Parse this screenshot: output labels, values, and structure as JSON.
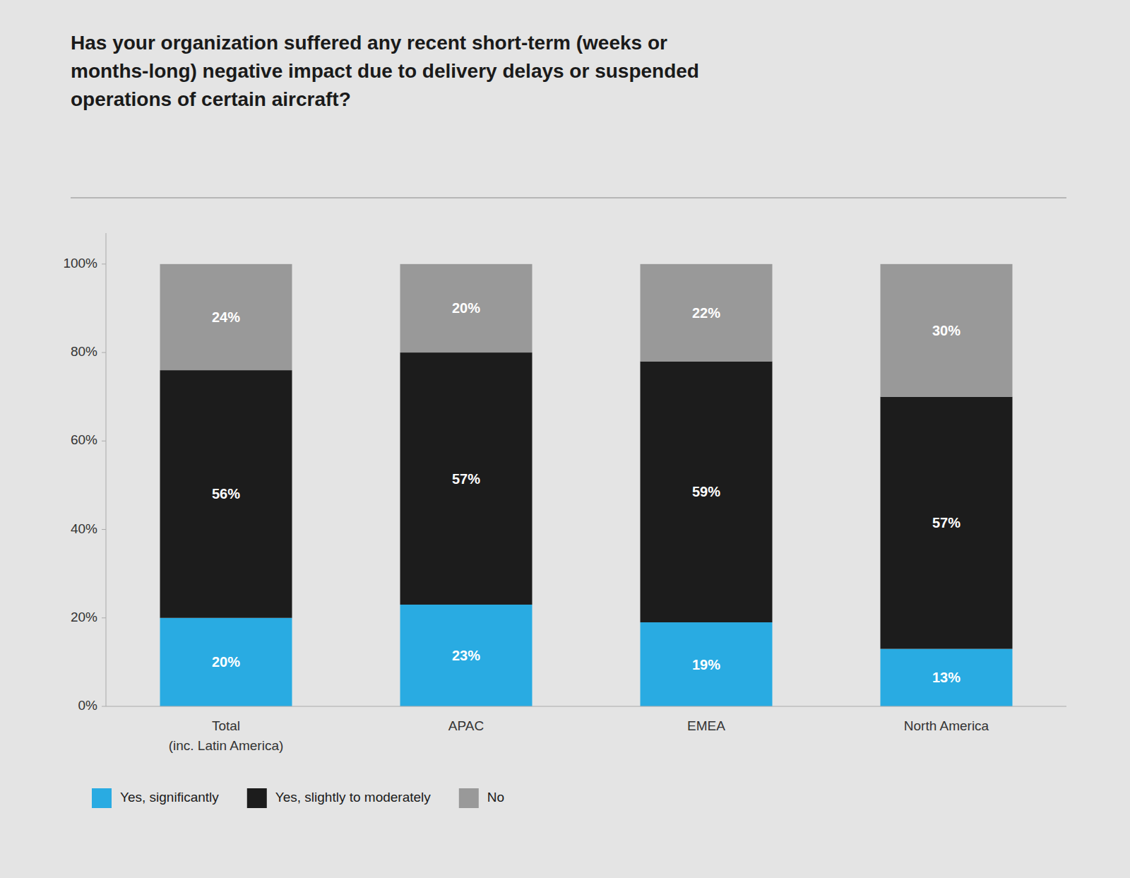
{
  "chart_data": {
    "type": "bar",
    "stacked": true,
    "title": "Has your organization suffered any recent short-term (weeks or\nmonths-long) negative impact due to delivery delays or suspended\noperations of certain aircraft?",
    "categories": [
      "Total\n(inc. Latin America)",
      "APAC",
      "EMEA",
      "North America"
    ],
    "series": [
      {
        "name": "Yes, significantly",
        "color": "#29abe2",
        "values": [
          20,
          23,
          19,
          13
        ],
        "value_labels": [
          "20%",
          "23%",
          "19%",
          "13%"
        ]
      },
      {
        "name": "Yes, slightly to moderately",
        "color": "#1c1c1c",
        "values": [
          56,
          57,
          59,
          57
        ],
        "value_labels": [
          "56%",
          "57%",
          "59%",
          "57%"
        ]
      },
      {
        "name": "No",
        "color": "#999999",
        "values": [
          24,
          20,
          22,
          30
        ],
        "value_labels": [
          "24%",
          "20%",
          "22%",
          "30%"
        ]
      }
    ],
    "ylim": [
      0,
      107
    ],
    "yticks": [
      {
        "value": 0,
        "label": "0%"
      },
      {
        "value": 20,
        "label": "20%"
      },
      {
        "value": 40,
        "label": "40%"
      },
      {
        "value": 60,
        "label": "60%"
      },
      {
        "value": 80,
        "label": "80%"
      },
      {
        "value": 100,
        "label": "100%"
      }
    ],
    "grid": false,
    "legend": "bottom",
    "data_labels": true
  }
}
